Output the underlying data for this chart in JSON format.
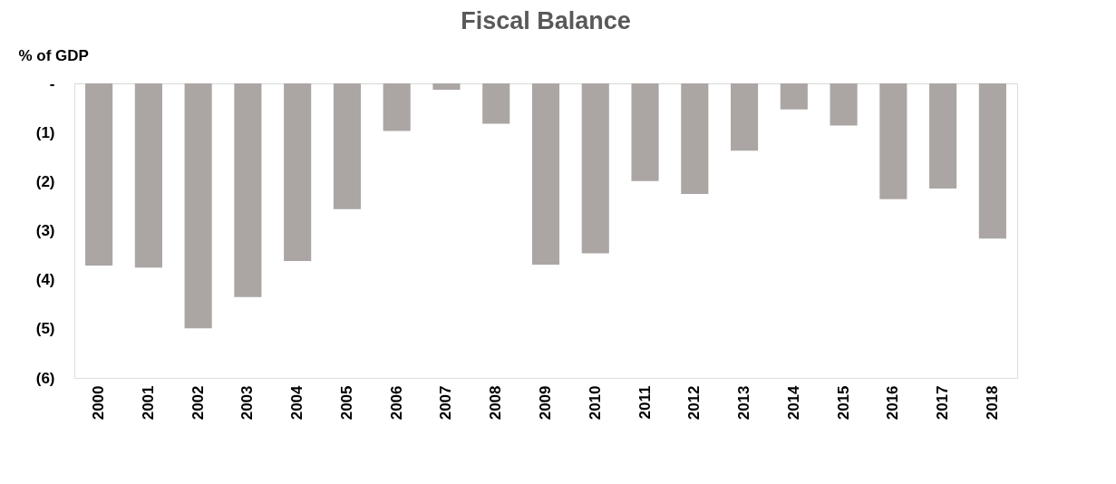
{
  "chart_data": {
    "type": "bar",
    "title": "Fiscal Balance",
    "ylabel": "% of GDP",
    "categories": [
      "2000",
      "2001",
      "2002",
      "2003",
      "2004",
      "2005",
      "2006",
      "2007",
      "2008",
      "2009",
      "2010",
      "2011",
      "2012",
      "2013",
      "2014",
      "2015",
      "2016",
      "2017",
      "2018"
    ],
    "values": [
      -3.71,
      -3.75,
      -4.99,
      -4.35,
      -3.62,
      -2.56,
      -0.97,
      -0.13,
      -0.82,
      -3.69,
      -3.46,
      -1.99,
      -2.25,
      -1.37,
      -0.53,
      -0.86,
      -2.36,
      -2.14,
      -3.16
    ],
    "color": "#aba6a4",
    "ylim": [
      -6,
      0
    ],
    "yticks": [
      {
        "value": 0,
        "label": "-"
      },
      {
        "value": -1,
        "label": "(1)"
      },
      {
        "value": -2,
        "label": "(2)"
      },
      {
        "value": -3,
        "label": "(3)"
      },
      {
        "value": -4,
        "label": "(4)"
      },
      {
        "value": -5,
        "label": "(5)"
      },
      {
        "value": -6,
        "label": "(6)"
      }
    ],
    "grid": false
  }
}
